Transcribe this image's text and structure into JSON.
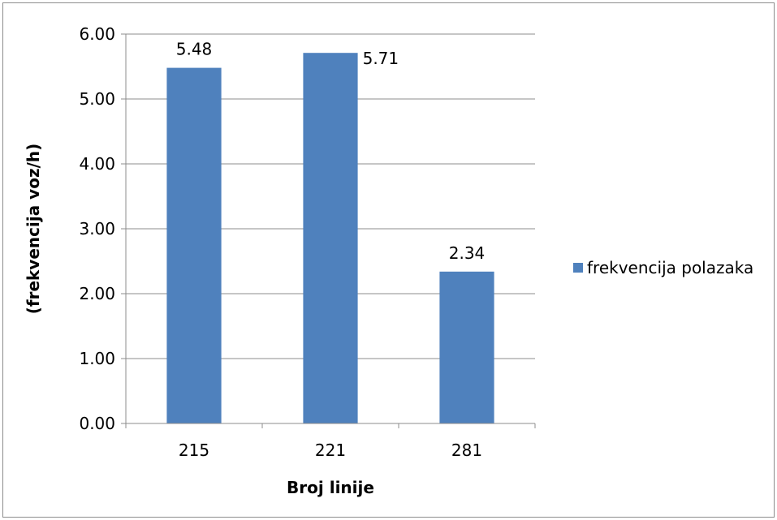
{
  "chart_data": {
    "type": "bar",
    "categories": [
      "215",
      "221",
      "281"
    ],
    "series": [
      {
        "name": "frekvencija polazaka",
        "values": [
          5.48,
          5.71,
          2.34
        ],
        "color": "#4f81bd"
      }
    ],
    "data_labels": [
      "5.48",
      "5.71",
      "2.34"
    ],
    "xlabel": "Broj linije",
    "ylabel": "(frekvencija voz/h)",
    "ylim": [
      0,
      6
    ],
    "yticks": [
      "0.00",
      "1.00",
      "2.00",
      "3.00",
      "4.00",
      "5.00",
      "6.00"
    ],
    "grid": true,
    "legend_position": "right"
  },
  "colors": {
    "gridline": "#8c8c8c",
    "axis": "#8c8c8c",
    "bar": "#4f81bd"
  }
}
